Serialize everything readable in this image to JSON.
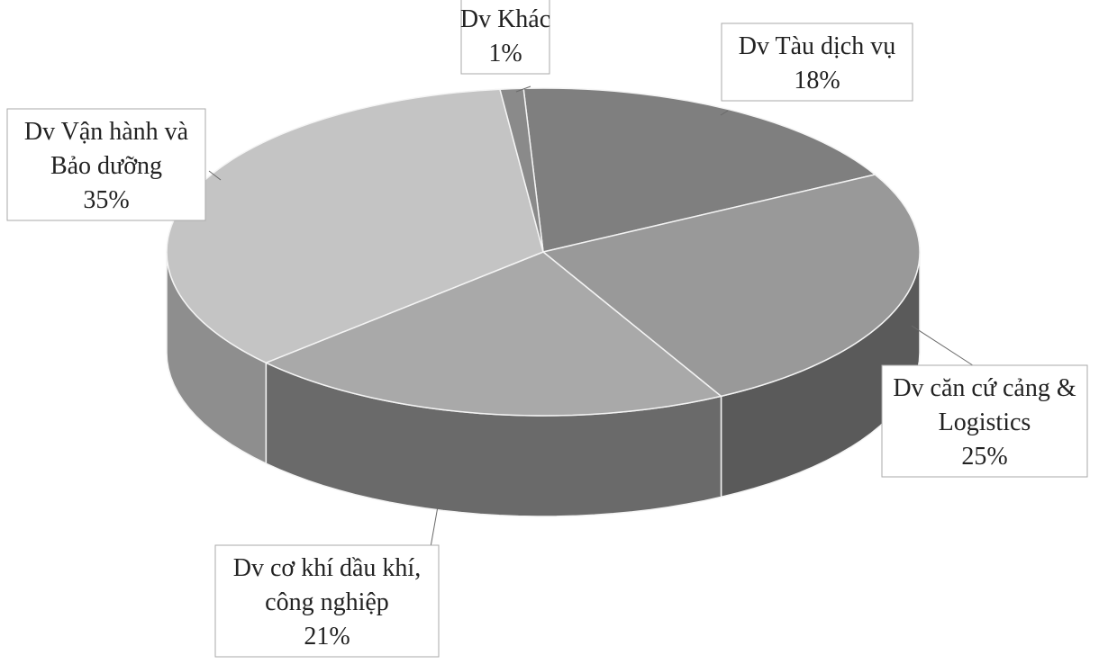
{
  "chart_data": {
    "type": "pie",
    "style": "3d",
    "slices": [
      {
        "label_lines": [
          "Dv Tàu dịch vụ",
          "18%"
        ],
        "value": 18,
        "color": "#7f7f7f",
        "side_color": "#4b4b4b"
      },
      {
        "label_lines": [
          "Dv căn cứ cảng &",
          "Logistics",
          "25%"
        ],
        "value": 25,
        "color": "#999999",
        "side_color": "#5a5a5a"
      },
      {
        "label_lines": [
          "Dv cơ khí dầu khí,",
          "công nghiệp",
          "21%"
        ],
        "value": 21,
        "color": "#a9a9a9",
        "side_color": "#6a6a6a"
      },
      {
        "label_lines": [
          "Dv Vận hành và",
          "Bảo dưỡng",
          "35%"
        ],
        "value": 35,
        "color": "#c4c4c4",
        "side_color": "#8e8e8e"
      },
      {
        "label_lines": [
          "Dv Khác",
          "1%"
        ],
        "value": 1,
        "color": "#8a8a8a",
        "side_color": "#555555"
      }
    ]
  }
}
